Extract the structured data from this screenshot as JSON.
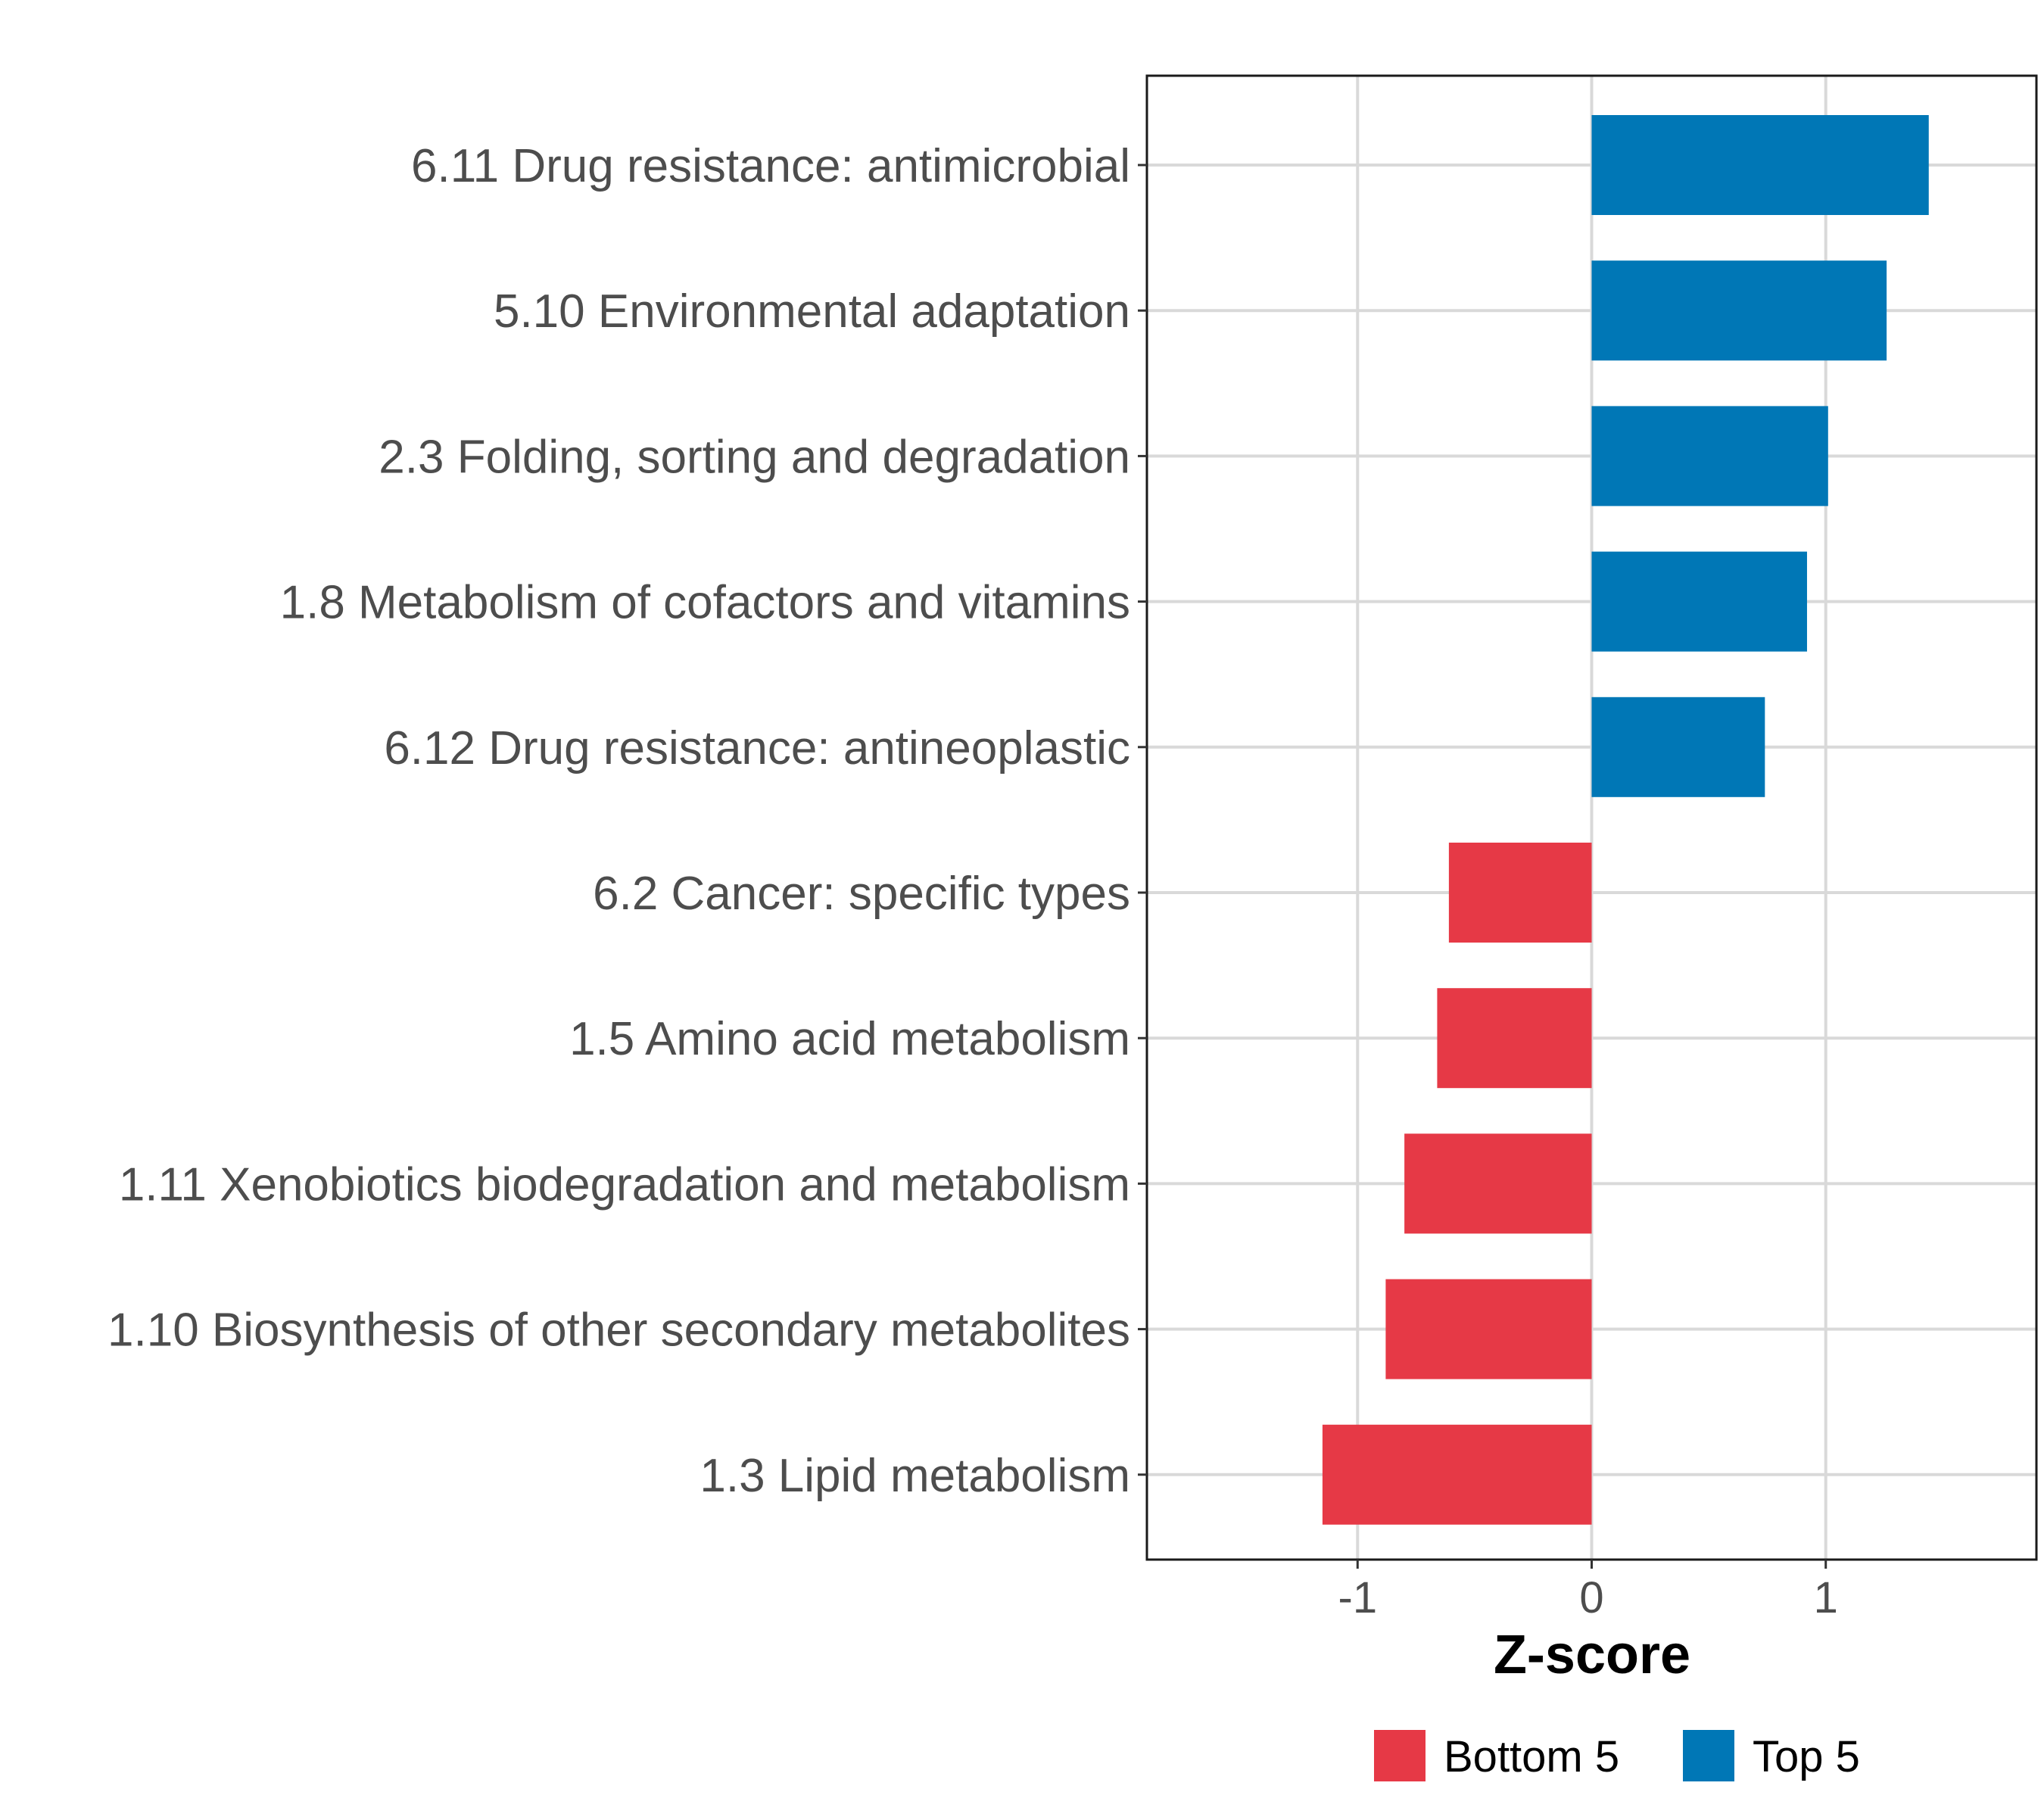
{
  "chart_data": {
    "type": "bar",
    "orientation": "horizontal",
    "categories": [
      "6.11 Drug resistance: antimicrobial",
      "5.10 Environmental adaptation",
      "2.3 Folding, sorting and degradation",
      "1.8 Metabolism of cofactors and vitamins",
      "6.12 Drug resistance: antineoplastic",
      "6.2 Cancer: specific types",
      "1.5 Amino acid metabolism",
      "1.11 Xenobiotics biodegradation and metabolism",
      "1.10 Biosynthesis of other secondary metabolites",
      "1.3 Lipid metabolism"
    ],
    "values": [
      1.44,
      1.26,
      1.01,
      0.92,
      0.74,
      -0.61,
      -0.66,
      -0.8,
      -0.88,
      -1.15
    ],
    "groups": [
      "Top 5",
      "Top 5",
      "Top 5",
      "Top 5",
      "Top 5",
      "Bottom 5",
      "Bottom 5",
      "Bottom 5",
      "Bottom 5",
      "Bottom 5"
    ],
    "xlabel": "Z-score",
    "ylabel": "",
    "xlim": [
      -1.9,
      1.9
    ],
    "xticks": [
      -1,
      0,
      1
    ],
    "xtick_labels": [
      "-1",
      "0",
      "1"
    ],
    "grid": true,
    "legend": {
      "position": "bottom",
      "entries": [
        {
          "label": "Bottom 5",
          "color": "#E63946"
        },
        {
          "label": "Top 5",
          "color": "#0077B6"
        }
      ]
    }
  }
}
